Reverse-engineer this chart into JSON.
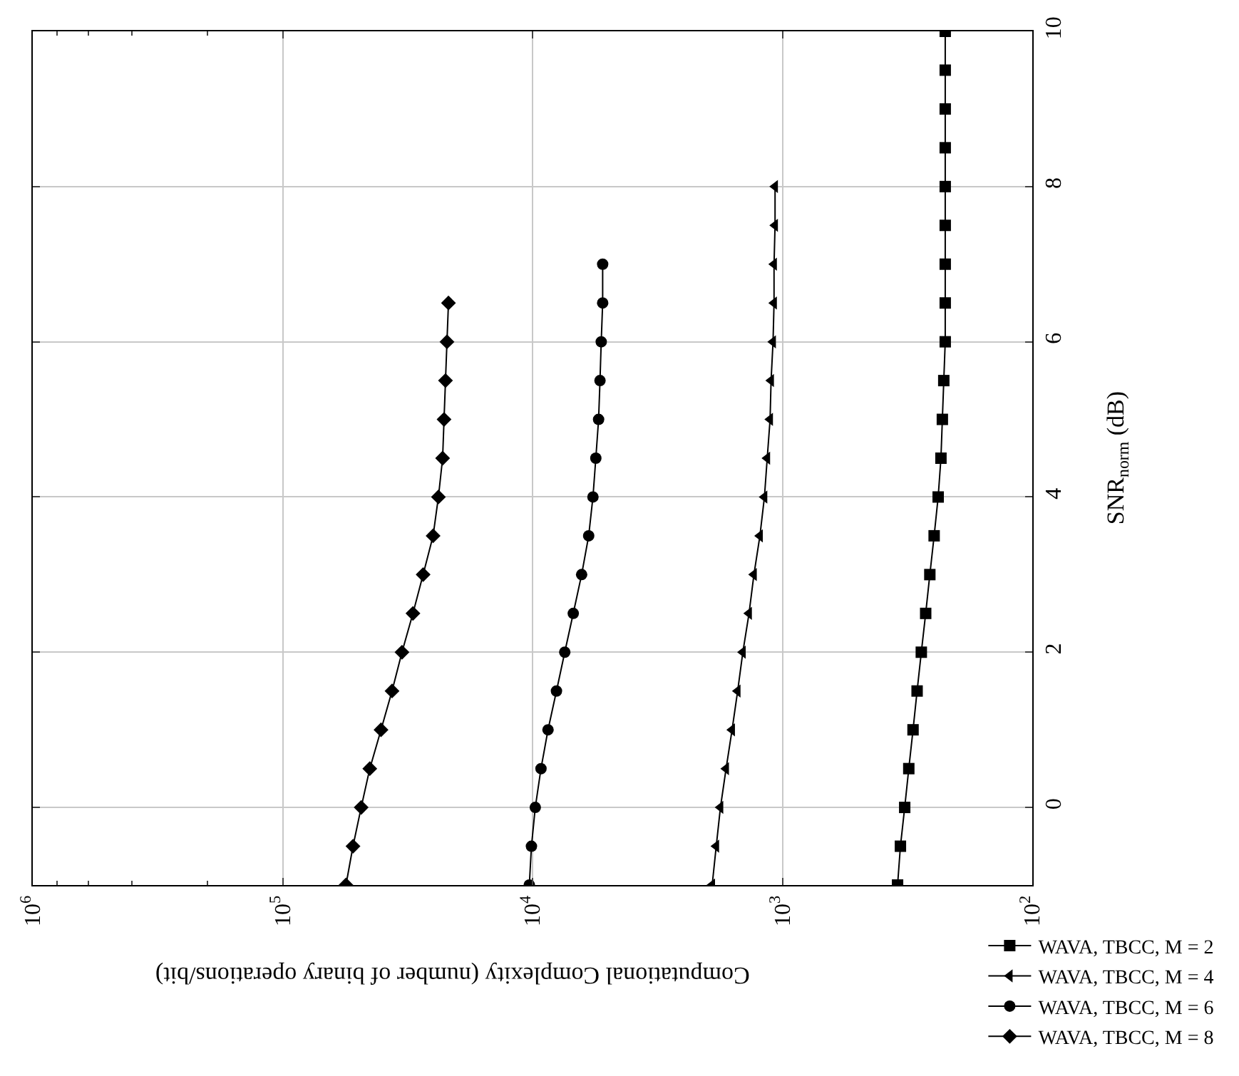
{
  "chart_data": {
    "type": "line",
    "xlabel": "Computational Complexity (number of binary operations/bit)",
    "ylabel": "SNR$_{norm}$ (dB)",
    "log": "x",
    "grid": true,
    "legend": "bottom right",
    "line_style": "solid",
    "ylim": [
      -1,
      10
    ],
    "yticks": [
      0,
      2,
      4,
      6,
      8,
      10
    ],
    "xlim": [
      1000000,
      100
    ],
    "xticks": [
      {
        "value": 1000000,
        "label": "10$^{6}$"
      },
      {
        "value": 100000,
        "label": "10$^{5}$"
      },
      {
        "value": 10000,
        "label": "10$^{4}$"
      },
      {
        "value": 1000,
        "label": "10$^{3}$"
      },
      {
        "value": 100,
        "label": "10$^{2}$"
      }
    ],
    "series": [
      {
        "name": "WAVA, TBCC, M = 2",
        "color": "#000000",
        "marker": "square",
        "x": [
          346,
          337,
          324,
          312,
          300,
          289,
          278,
          267,
          257,
          247,
          238,
          232,
          229,
          226,
          223,
          223,
          223,
          223,
          223,
          223,
          223,
          223,
          223
        ],
        "values": [
          -1,
          -0.5,
          0,
          0.5,
          1,
          1.5,
          2,
          2.5,
          3,
          3.5,
          4,
          4.5,
          5,
          5.5,
          6,
          6.5,
          7,
          7.5,
          8,
          8.5,
          9,
          9.5,
          10
        ]
      },
      {
        "name": "WAVA, TBCC, M = 4",
        "color": "#000000",
        "marker": "triangle",
        "x": [
          1910,
          1840,
          1770,
          1680,
          1590,
          1510,
          1440,
          1360,
          1300,
          1230,
          1180,
          1150,
          1120,
          1110,
          1090,
          1080,
          1080,
          1070,
          1070
        ],
        "values": [
          -1,
          -0.5,
          0,
          0.5,
          1,
          1.5,
          2,
          2.5,
          3,
          3.5,
          4,
          4.5,
          5,
          5.5,
          6,
          6.5,
          7,
          7.5,
          8
        ]
      },
      {
        "name": "WAVA, TBCC, M = 6",
        "color": "#000000",
        "marker": "circle",
        "x": [
          10300,
          10100,
          9750,
          9250,
          8670,
          8020,
          7430,
          6870,
          6360,
          5960,
          5730,
          5580,
          5440,
          5370,
          5310,
          5240,
          5240
        ],
        "values": [
          -1,
          -0.5,
          0,
          0.5,
          1,
          1.5,
          2,
          2.5,
          3,
          3.5,
          4,
          4.5,
          5,
          5.5,
          6,
          6.5,
          7
        ]
      },
      {
        "name": "WAVA, TBCC, M = 8",
        "color": "#000000",
        "marker": "diamond",
        "x": [
          55800,
          52300,
          48500,
          44800,
          40400,
          36500,
          33300,
          30100,
          27400,
          25000,
          23800,
          22900,
          22600,
          22300,
          22000,
          21700
        ],
        "values": [
          -1,
          -0.5,
          0,
          0.5,
          1,
          1.5,
          2,
          2.5,
          3,
          3.5,
          4,
          4.5,
          5,
          5.5,
          6,
          6.5
        ]
      }
    ]
  }
}
